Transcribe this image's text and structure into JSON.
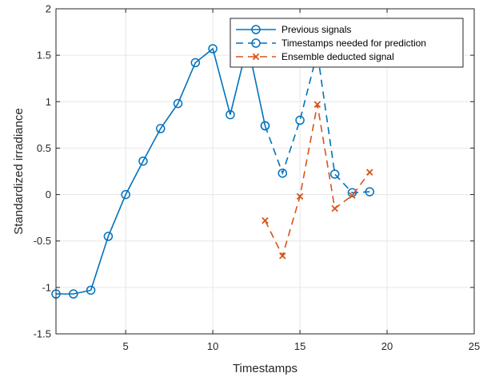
{
  "chart_data": {
    "type": "line",
    "xlabel": "Timestamps",
    "ylabel": "Standardized irradiance",
    "xlim": [
      1,
      25
    ],
    "ylim": [
      -1.5,
      2
    ],
    "xticks": [
      5,
      10,
      15,
      20,
      25
    ],
    "yticks": [
      -1.5,
      -1,
      -0.5,
      0,
      0.5,
      1,
      1.5,
      2
    ],
    "grid": true,
    "legend_position": "top-right",
    "series": [
      {
        "name": "Previous signals",
        "color": "#0072BD",
        "line_style": "solid",
        "marker": "circle",
        "x": [
          1,
          2,
          3,
          4,
          5,
          6,
          7,
          8,
          9,
          10,
          11,
          12,
          13
        ],
        "y": [
          -1.07,
          -1.07,
          -1.03,
          -0.45,
          0.0,
          0.36,
          0.71,
          0.98,
          1.42,
          1.57,
          0.86,
          1.62,
          0.74
        ]
      },
      {
        "name": "Timestamps needed for prediction",
        "color": "#0072BD",
        "line_style": "dashed",
        "marker": "circle",
        "x": [
          13,
          14,
          15,
          16,
          17,
          18,
          19
        ],
        "y": [
          0.74,
          0.23,
          0.8,
          1.53,
          0.22,
          0.02,
          0.03
        ]
      },
      {
        "name": "Ensemble deducted signal",
        "color": "#D95319",
        "line_style": "dashed",
        "marker": "x",
        "x": [
          13,
          14,
          15,
          16,
          17,
          18,
          19
        ],
        "y": [
          -0.28,
          -0.66,
          -0.02,
          0.97,
          -0.15,
          -0.01,
          0.24
        ]
      }
    ]
  }
}
